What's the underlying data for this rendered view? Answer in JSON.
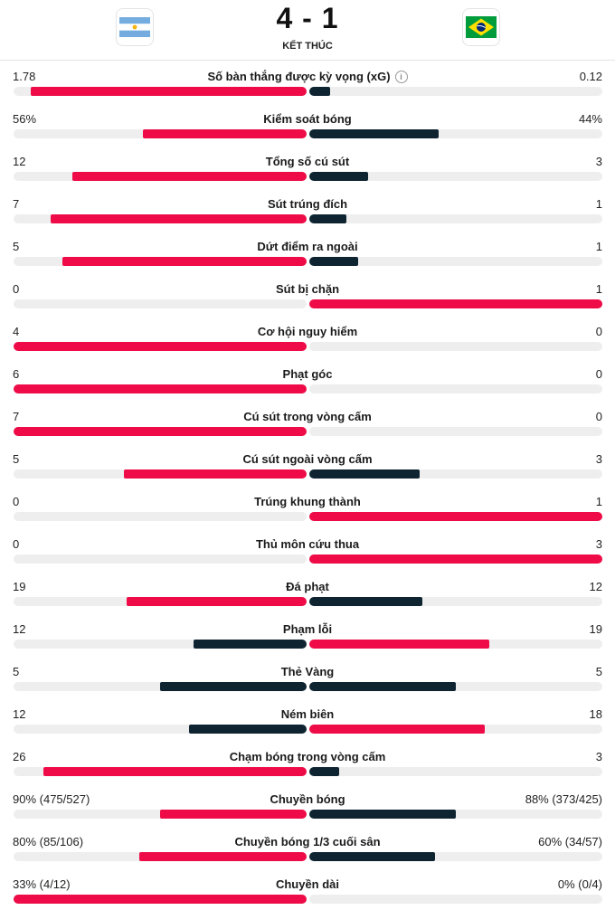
{
  "match": {
    "score": "4 - 1",
    "status": "KẾT THÚC",
    "home_flag": "argentina-flag",
    "away_flag": "brazil-flag"
  },
  "colors": {
    "lead": "#ee0b47",
    "trail": "#0f2431",
    "track": "#eeeeee"
  },
  "stats": [
    {
      "label": "Số bàn thắng được kỳ vọng (xG)",
      "home": "1.78",
      "away": "0.12",
      "home_share": 0.94,
      "away_share": 0.07,
      "info_icon": true
    },
    {
      "label": "Kiểm soát bóng",
      "home": "56%",
      "away": "44%",
      "home_share": 0.56,
      "away_share": 0.44
    },
    {
      "label": "Tổng số cú sút",
      "home": "12",
      "away": "3",
      "home_share": 0.8,
      "away_share": 0.2
    },
    {
      "label": "Sút trúng đích",
      "home": "7",
      "away": "1",
      "home_share": 0.875,
      "away_share": 0.125
    },
    {
      "label": "Dứt điểm ra ngoài",
      "home": "5",
      "away": "1",
      "home_share": 0.833,
      "away_share": 0.167
    },
    {
      "label": "Sút bị chặn",
      "home": "0",
      "away": "1",
      "home_share": 0,
      "away_share": 1
    },
    {
      "label": "Cơ hội nguy hiểm",
      "home": "4",
      "away": "0",
      "home_share": 1,
      "away_share": 0
    },
    {
      "label": "Phạt góc",
      "home": "6",
      "away": "0",
      "home_share": 1,
      "away_share": 0
    },
    {
      "label": "Cú sút trong vòng cấm",
      "home": "7",
      "away": "0",
      "home_share": 1,
      "away_share": 0
    },
    {
      "label": "Cú sút ngoài vòng cấm",
      "home": "5",
      "away": "3",
      "home_share": 0.625,
      "away_share": 0.375
    },
    {
      "label": "Trúng khung thành",
      "home": "0",
      "away": "1",
      "home_share": 0,
      "away_share": 1
    },
    {
      "label": "Thủ môn cứu thua",
      "home": "0",
      "away": "3",
      "home_share": 0,
      "away_share": 1
    },
    {
      "label": "Đá phạt",
      "home": "19",
      "away": "12",
      "home_share": 0.613,
      "away_share": 0.387
    },
    {
      "label": "Phạm lỗi",
      "home": "12",
      "away": "19",
      "home_share": 0.387,
      "away_share": 0.613
    },
    {
      "label": "Thẻ Vàng",
      "home": "5",
      "away": "5",
      "home_share": 0.5,
      "away_share": 0.5,
      "tie": true
    },
    {
      "label": "Ném biên",
      "home": "12",
      "away": "18",
      "home_share": 0.4,
      "away_share": 0.6
    },
    {
      "label": "Chạm bóng trong vòng cấm",
      "home": "26",
      "away": "3",
      "home_share": 0.897,
      "away_share": 0.103
    },
    {
      "label": "Chuyền bóng",
      "home": "90% (475/527)",
      "away": "88% (373/425)",
      "home_share": 0.5,
      "away_share": 0.5
    },
    {
      "label": "Chuyền bóng 1/3 cuối sân",
      "home": "80% (85/106)",
      "away": "60% (34/57)",
      "home_share": 0.57,
      "away_share": 0.43
    },
    {
      "label": "Chuyền dài",
      "home": "33% (4/12)",
      "away": "0% (0/4)",
      "home_share": 1,
      "away_share": 0
    }
  ]
}
